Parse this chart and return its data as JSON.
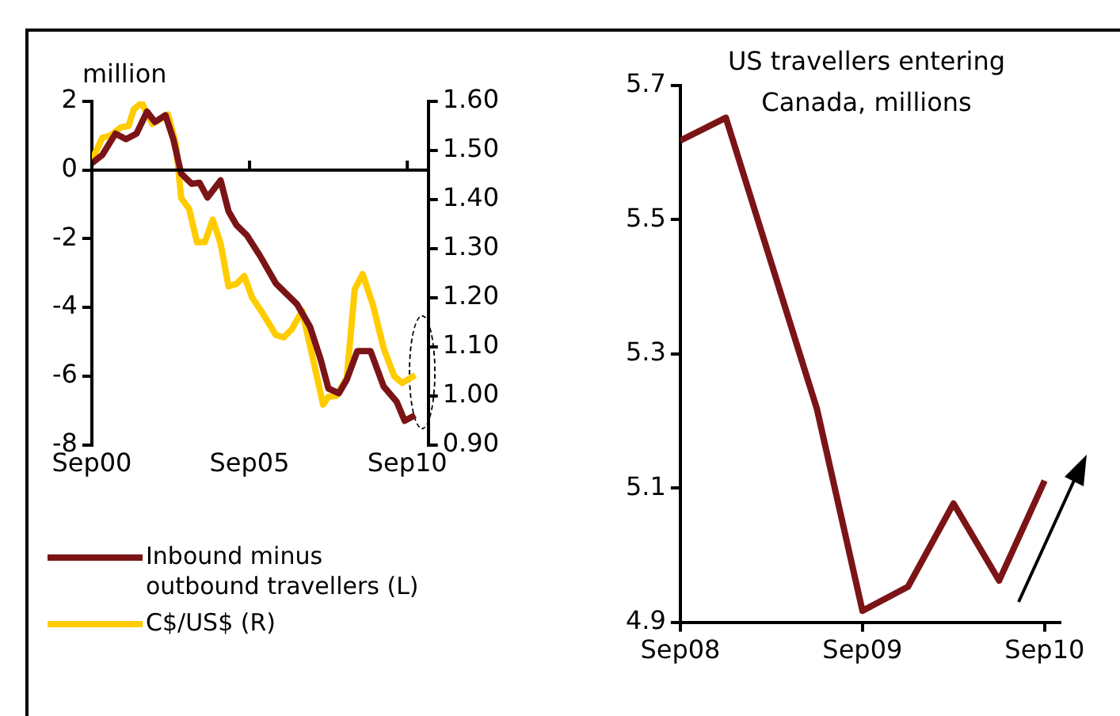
{
  "chart_data": [
    {
      "type": "line",
      "ylabel": "million",
      "legend": "bottom",
      "xlim": [
        "2000-09",
        "2011-05"
      ],
      "xticks": [
        {
          "value": "2000-09",
          "label": "Sep00"
        },
        {
          "value": "2005-09",
          "label": "Sep05"
        },
        {
          "value": "2010-09",
          "label": "Sep10"
        }
      ],
      "ylim": [
        -8,
        2
      ],
      "yticks": [
        -8,
        -6,
        -4,
        -2,
        0,
        2
      ],
      "y2lim": [
        0.9,
        1.6
      ],
      "y2ticks": [
        {
          "value": 0.9,
          "label": "0.90"
        },
        {
          "value": 1.0,
          "label": "1.00"
        },
        {
          "value": 1.1,
          "label": "1.10"
        },
        {
          "value": 1.2,
          "label": "1.20"
        },
        {
          "value": 1.3,
          "label": "1.30"
        },
        {
          "value": 1.4,
          "label": "1.40"
        },
        {
          "value": 1.5,
          "label": "1.50"
        },
        {
          "value": 1.6,
          "label": "1.60"
        }
      ],
      "ref_lines": [
        {
          "axis": "y",
          "value": 0,
          "color": "#000000"
        }
      ],
      "series": [
        {
          "name": "Inbound minus outbound travellers (L)",
          "color": "#7b1416",
          "x": [
            "2000-09",
            "2001-01",
            "2001-06",
            "2001-10",
            "2002-02",
            "2002-06",
            "2002-09",
            "2003-01",
            "2003-04",
            "2003-07",
            "2003-11",
            "2004-02",
            "2004-05",
            "2004-10",
            "2005-01",
            "2005-04",
            "2005-08",
            "2006-01",
            "2006-07",
            "2006-11",
            "2007-03",
            "2007-08",
            "2007-12",
            "2008-03",
            "2008-07",
            "2008-10",
            "2009-02",
            "2009-07",
            "2009-12",
            "2010-05",
            "2010-08",
            "2010-12"
          ],
          "values": [
            0.2,
            0.44,
            1.06,
            0.9,
            1.06,
            1.7,
            1.4,
            1.6,
            0.9,
            -0.1,
            -0.4,
            -0.37,
            -0.8,
            -0.3,
            -1.2,
            -1.6,
            -1.9,
            -2.5,
            -3.3,
            -3.6,
            -3.9,
            -4.56,
            -5.5,
            -6.36,
            -6.5,
            -6.1,
            -5.27,
            -5.27,
            -6.3,
            -6.75,
            -7.3,
            -7.14
          ]
        },
        {
          "name": "C$/US$ (R)",
          "color": "#ffcc00",
          "axis": "y2",
          "x": [
            "2000-09",
            "2001-01",
            "2001-04",
            "2001-08",
            "2001-11",
            "2002-01",
            "2002-04",
            "2002-08",
            "2003-02",
            "2003-05",
            "2003-07",
            "2003-10",
            "2004-01",
            "2004-04",
            "2004-07",
            "2004-10",
            "2005-01",
            "2005-04",
            "2005-07",
            "2005-10",
            "2006-02",
            "2006-07",
            "2006-10",
            "2007-01",
            "2007-05",
            "2007-08",
            "2008-01",
            "2008-03",
            "2008-06",
            "2008-10",
            "2009-01",
            "2009-04",
            "2009-08",
            "2009-12",
            "2010-04",
            "2010-07",
            "2010-12"
          ],
          "values": [
            1.48,
            1.526,
            1.53,
            1.547,
            1.55,
            1.584,
            1.597,
            1.554,
            1.573,
            1.512,
            1.403,
            1.381,
            1.313,
            1.313,
            1.359,
            1.31,
            1.223,
            1.228,
            1.244,
            1.2,
            1.168,
            1.124,
            1.119,
            1.135,
            1.173,
            1.102,
            0.982,
            0.998,
            1.0,
            1.036,
            1.217,
            1.248,
            1.184,
            1.097,
            1.04,
            1.026,
            1.042
          ]
        }
      ]
    },
    {
      "type": "line",
      "title": "US travellers entering Canada, millions",
      "xlim": [
        "2008-09",
        "2010-10"
      ],
      "xticks": [
        {
          "value": "2008-09",
          "label": "Sep08"
        },
        {
          "value": "2009-09",
          "label": "Sep09"
        },
        {
          "value": "2010-09",
          "label": "Sep10"
        }
      ],
      "ylim": [
        4.9,
        5.7
      ],
      "yticks": [
        4.9,
        5.1,
        5.3,
        5.5,
        5.7
      ],
      "series": [
        {
          "color": "#7b1416",
          "x": [
            "2008-09",
            "2008-12",
            "2009-06",
            "2009-09",
            "2009-12",
            "2010-03",
            "2010-06",
            "2010-09"
          ],
          "values": [
            5.618,
            5.652,
            5.218,
            4.917,
            4.953,
            5.077,
            4.962,
            5.111
          ]
        }
      ]
    }
  ]
}
